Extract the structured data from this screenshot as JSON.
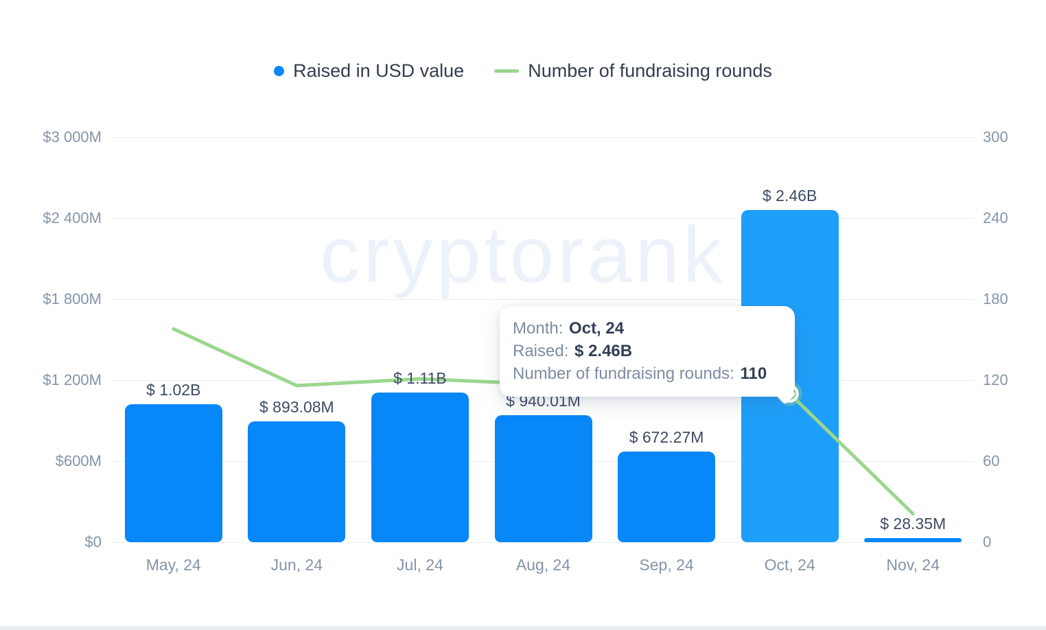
{
  "page": {
    "background": "#ffffff",
    "footer_bar_color": "#e9eef2"
  },
  "legend": {
    "items": [
      {
        "label": "Raised in USD value",
        "marker": "dot",
        "color": "#0887f9"
      },
      {
        "label": "Number of fundraising rounds",
        "marker": "dash",
        "color": "#9bd68e"
      }
    ]
  },
  "watermark": {
    "text": "cryptorank"
  },
  "tooltip": {
    "rows": [
      {
        "label": "Month:",
        "value": "Oct, 24"
      },
      {
        "label": "Raised:",
        "value": "$ 2.46B"
      },
      {
        "label": "Number of fundraising rounds:",
        "value": "110"
      }
    ]
  },
  "chart_data": {
    "type": "bar",
    "title": "",
    "categories": [
      "May, 24",
      "Jun, 24",
      "Jul, 24",
      "Aug, 24",
      "Sep, 24",
      "Oct, 24",
      "Nov, 24"
    ],
    "series": [
      {
        "name": "Raised in USD value",
        "type": "bar",
        "axis": "left",
        "unit": "USD millions",
        "values": [
          1020,
          893.08,
          1110,
          940.01,
          672.27,
          2460,
          28.35
        ],
        "value_labels": [
          "$ 1.02B",
          "$ 893.08M",
          "$ 1.11B",
          "$ 940.01M",
          "$ 672.27M",
          "$ 2.46B",
          "$ 28.35M"
        ],
        "color": "#0887f9",
        "highlight_index": 5,
        "highlight_color": "#1e9ffa"
      },
      {
        "name": "Number of fundraising rounds",
        "type": "line",
        "axis": "right",
        "values": [
          158,
          116,
          121,
          117,
          114,
          110,
          21
        ],
        "note": "Oct value 110 shown in tooltip; other values estimated from line position",
        "color": "#9bd68e",
        "marker_index": 5,
        "marker_fill": "#8ccc82",
        "marker_halo": "rgba(155,214,142,0.4)"
      }
    ],
    "left_axis": {
      "min": 0,
      "max": 3000,
      "ticks": [
        "$0",
        "$600M",
        "$1 200M",
        "$1 800M",
        "$2 400M",
        "$3 000M"
      ]
    },
    "right_axis": {
      "min": 0,
      "max": 300,
      "ticks": [
        "0",
        "60",
        "120",
        "180",
        "240",
        "300"
      ]
    },
    "grid": "horizontal",
    "legend_position": "top"
  }
}
